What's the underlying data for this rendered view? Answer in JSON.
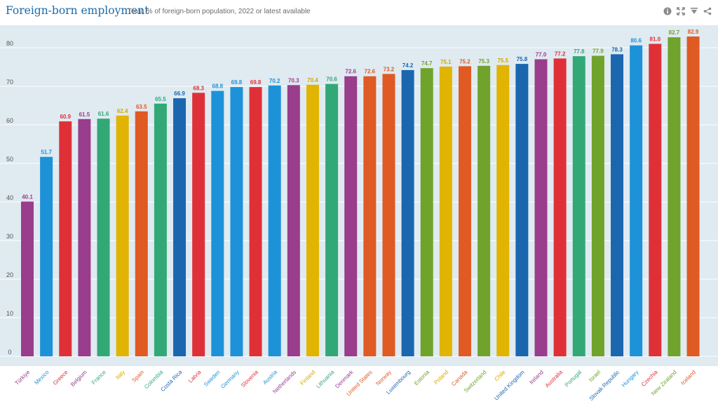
{
  "header": {
    "title": "Foreign-born employment",
    "subtitle": "Total, % of foreign-born population, 2022 or latest available",
    "icons": [
      "info-icon",
      "fullscreen-icon",
      "download-icon",
      "share-icon"
    ]
  },
  "chart_data": {
    "type": "bar",
    "title": "Foreign-born employment",
    "subtitle": "Total, % of foreign-born population, 2022 or latest available",
    "xlabel": "",
    "ylabel": "",
    "ylim": [
      0,
      85
    ],
    "yticks": [
      0,
      10,
      20,
      30,
      40,
      50,
      60,
      70,
      80
    ],
    "grid": true,
    "categories": [
      "Türkiye",
      "Mexico",
      "Greece",
      "Belgium",
      "France",
      "Italy",
      "Spain",
      "Colombia",
      "Costa Rica",
      "Latvia",
      "Sweden",
      "Germany",
      "Slovenia",
      "Austria",
      "Netherlands",
      "Finland",
      "Lithuania",
      "Denmark",
      "United States",
      "Norway",
      "Luxembourg",
      "Estonia",
      "Poland",
      "Canada",
      "Switzerland",
      "Chile",
      "United Kingdom",
      "Ireland",
      "Australia",
      "Portugal",
      "Israel",
      "Slovak Republic",
      "Hungary",
      "Czechia",
      "New Zealand",
      "Iceland"
    ],
    "values": [
      40.1,
      51.7,
      60.9,
      61.5,
      61.6,
      62.4,
      63.5,
      65.5,
      66.9,
      68.3,
      68.8,
      69.8,
      69.8,
      70.2,
      70.3,
      70.4,
      70.6,
      72.6,
      72.6,
      73.2,
      74.2,
      74.7,
      75.1,
      75.2,
      75.3,
      75.5,
      75.8,
      77.0,
      77.2,
      77.8,
      77.9,
      78.3,
      80.6,
      81.0,
      82.7,
      82.9
    ],
    "value_labels": [
      "40.1",
      "51.7",
      "60.9",
      "61.5",
      "61.6",
      "62.4",
      "63.5",
      "65.5",
      "66.9",
      "68.3",
      "68.8",
      "69.8",
      "69.8",
      "70.2",
      "70.3",
      "70.4",
      "70.6",
      "72.6",
      "72.6",
      "73.2",
      "74.2",
      "74.7",
      "75.1",
      "75.2",
      "75.3",
      "75.5",
      "75.8",
      "77.0",
      "77.2",
      "77.8",
      "77.9",
      "78.3",
      "80.6",
      "81.0",
      "82.7",
      "82.9"
    ],
    "colors": [
      "#993d8c",
      "#1d92d8",
      "#e03037",
      "#993d8c",
      "#33a877",
      "#e0b400",
      "#e05a23",
      "#33a877",
      "#1a67b0",
      "#e03037",
      "#1d92d8",
      "#1d92d8",
      "#e03037",
      "#1d92d8",
      "#993d8c",
      "#e0b400",
      "#33a877",
      "#993d8c",
      "#e05a23",
      "#e05a23",
      "#1a67b0",
      "#70a32b",
      "#e0b400",
      "#e05a23",
      "#70a32b",
      "#e0b400",
      "#1a67b0",
      "#993d8c",
      "#e03037",
      "#33a877",
      "#70a32b",
      "#1a67b0",
      "#1d92d8",
      "#e03037",
      "#70a32b",
      "#e05a23"
    ],
    "label_colors": [
      "#993d8c",
      "#1d92d8",
      "#e03037",
      "#993d8c",
      "#33a877",
      "#d4a800",
      "#e05a23",
      "#33a877",
      "#1a67b0",
      "#e03037",
      "#1d92d8",
      "#1d92d8",
      "#e03037",
      "#1d92d8",
      "#993d8c",
      "#d4a800",
      "#33a877",
      "#993d8c",
      "#e05a23",
      "#e05a23",
      "#1a67b0",
      "#70a32b",
      "#d4a800",
      "#e05a23",
      "#70a32b",
      "#d4a800",
      "#1a67b0",
      "#993d8c",
      "#e03037",
      "#33a877",
      "#70a32b",
      "#1a67b0",
      "#1d92d8",
      "#e03037",
      "#70a32b",
      "#e05a23"
    ]
  }
}
